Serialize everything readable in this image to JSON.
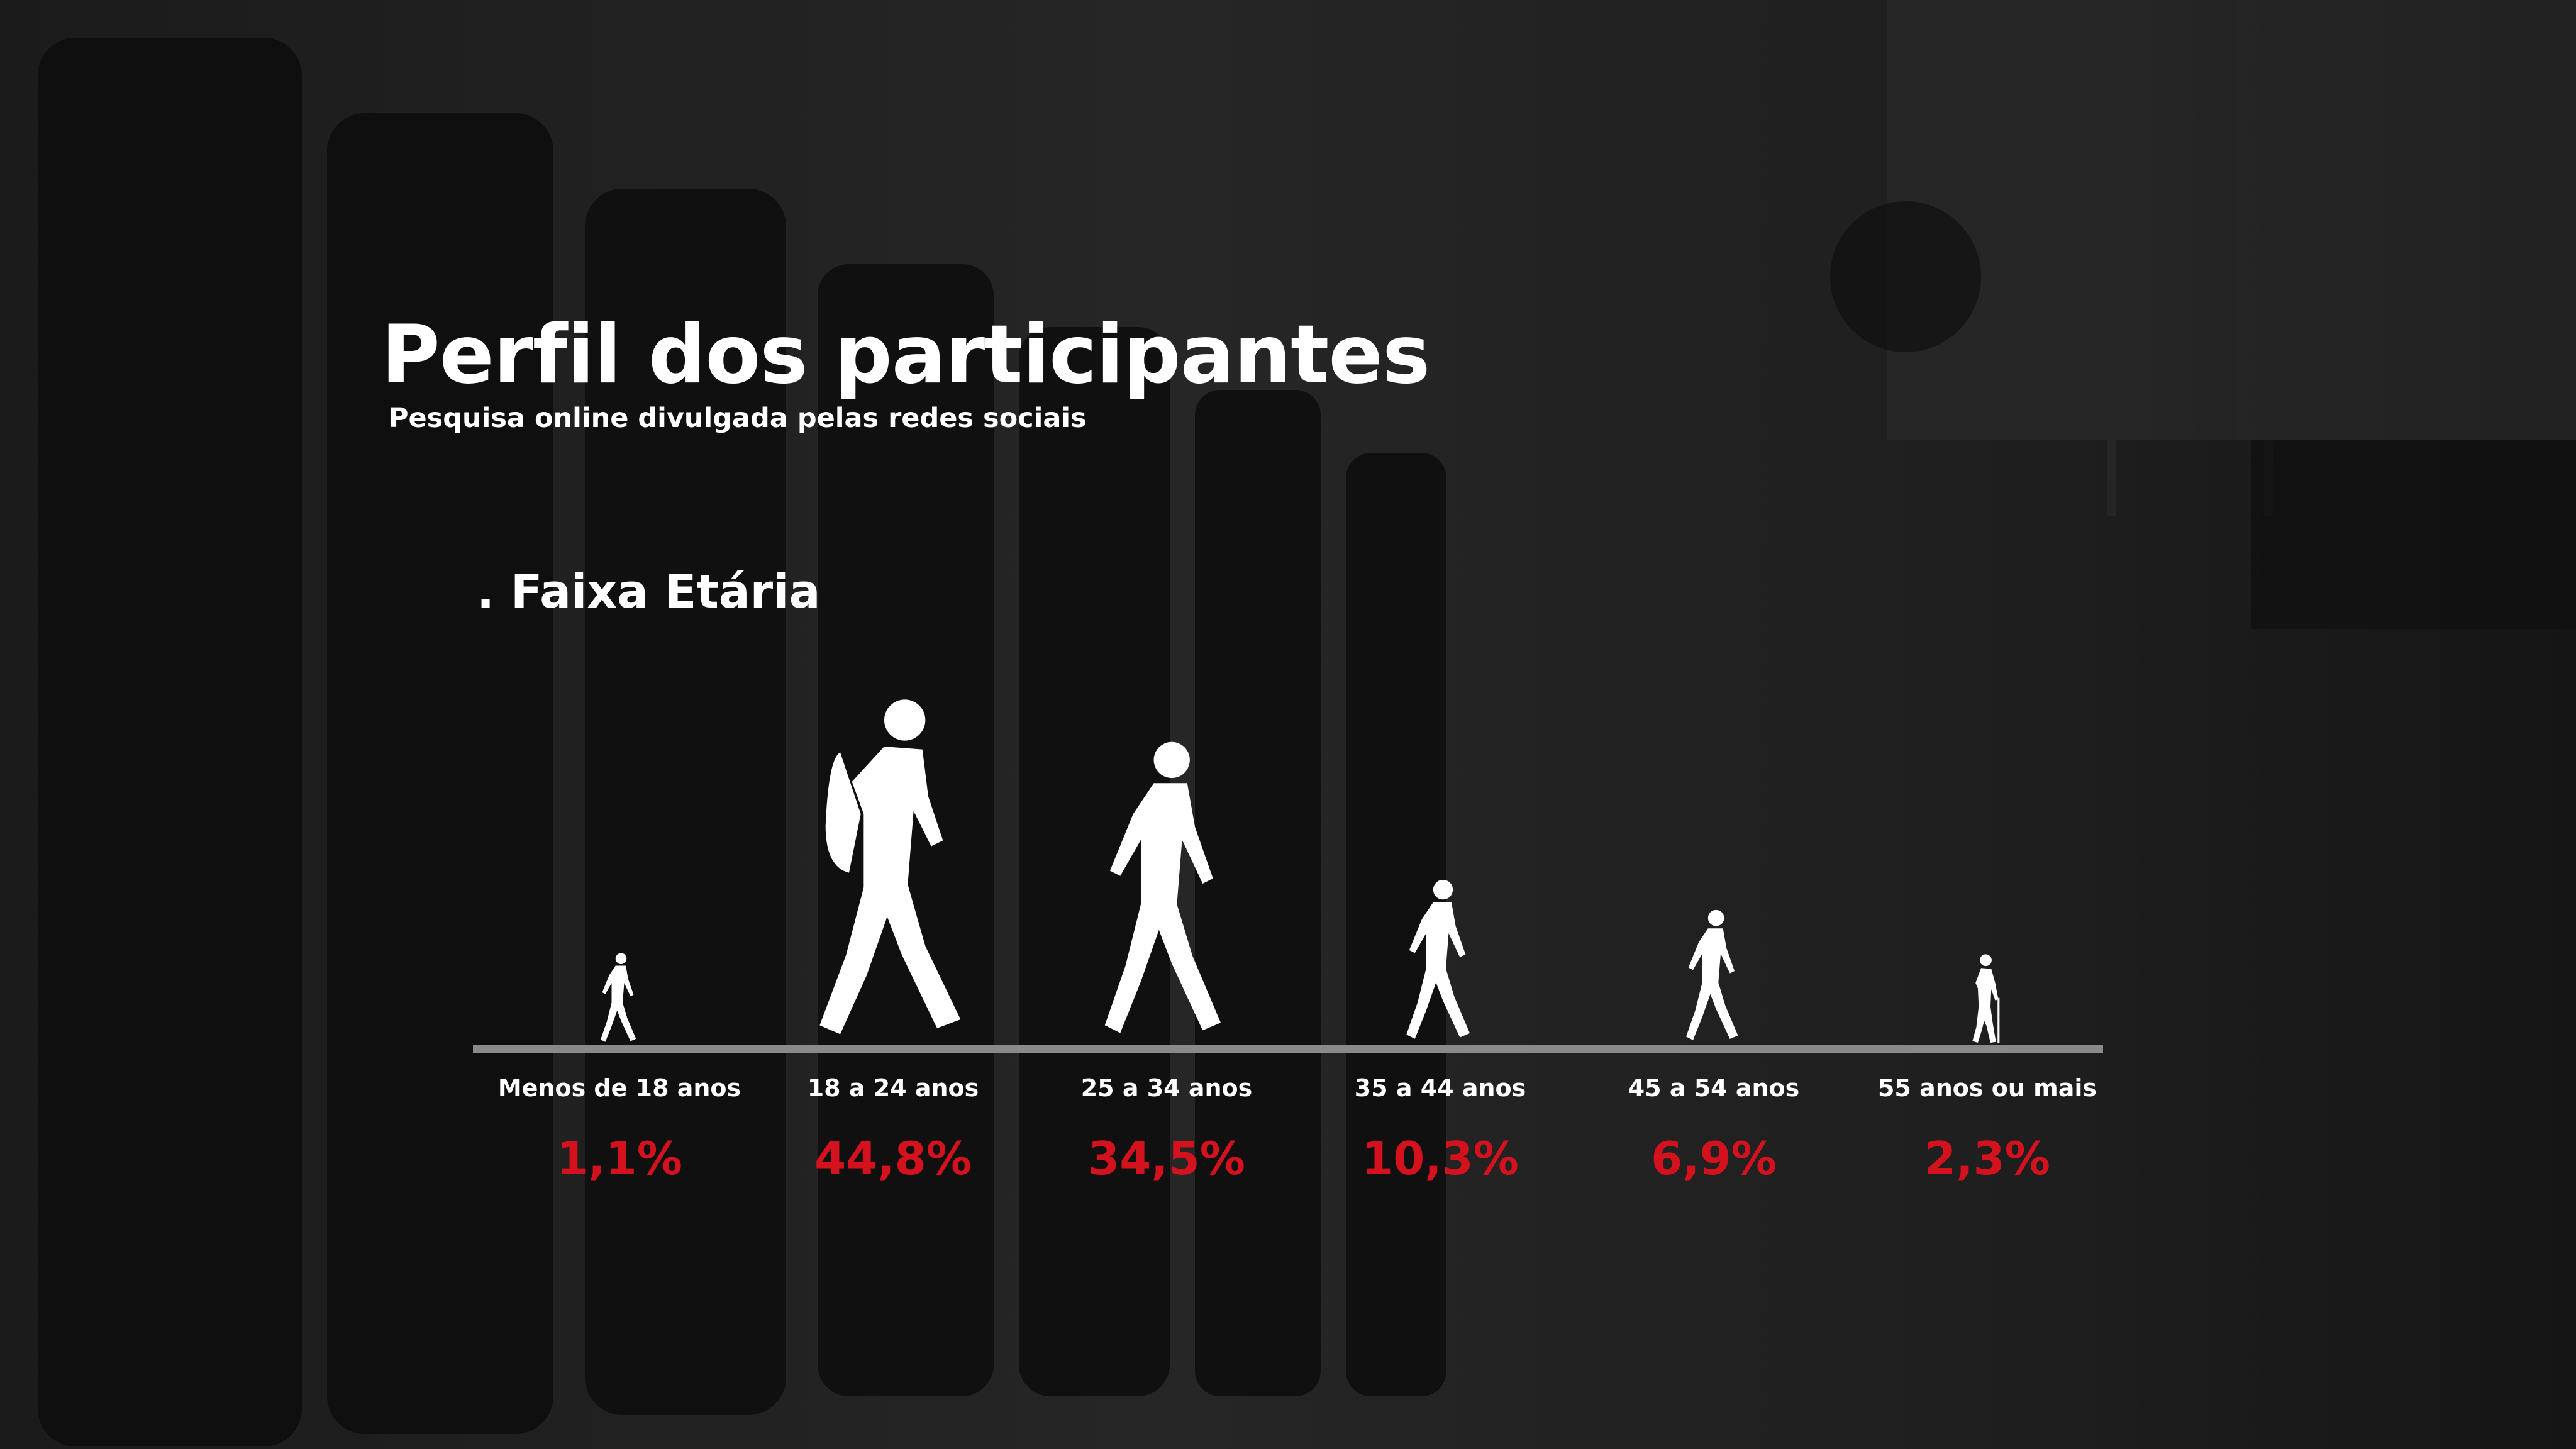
{
  "header": {
    "title": "Perfil dos participantes",
    "subtitle": "Pesquisa online divulgada pelas redes sociais",
    "section": ". Faixa Etária"
  },
  "colors": {
    "background": "#161616",
    "text": "#ffffff",
    "accent": "#d3121e",
    "baseline": "#8a8a8a",
    "figure": "#ffffff"
  },
  "chart_data": {
    "type": "bar",
    "title": "",
    "xlabel": "",
    "ylabel": "",
    "categories": [
      "Menos de 18 anos",
      "18 a 24 anos",
      "25 a 34 anos",
      "35 a 44 anos",
      "45 a 54 anos",
      "55 anos ou mais"
    ],
    "values": [
      1.1,
      44.8,
      34.5,
      10.3,
      6.9,
      2.3
    ],
    "value_labels": [
      "1,1%",
      "44,8%",
      "34,5%",
      "10,3%",
      "6,9%",
      "2,3%"
    ],
    "unit": "%",
    "ylim": [
      0,
      44.8
    ],
    "grid": false,
    "legend": "none",
    "mark": "walking-person-silhouette",
    "icons": [
      "child-silhouette-icon",
      "young-person-backpack-icon",
      "adult-walking-icon",
      "adult-walking-icon",
      "adult-walking-icon",
      "elderly-cane-icon"
    ]
  }
}
